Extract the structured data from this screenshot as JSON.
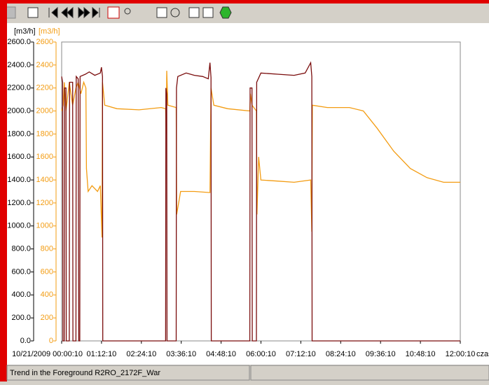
{
  "chart_data": {
    "type": "line",
    "ylabel": "[m3/h]",
    "y2label": "[m3/h]",
    "xlabel": "czas",
    "xlim": [
      "00:00:10",
      "12:00:10"
    ],
    "xticks": [
      {
        "value": "00:00:10",
        "label": "10/21/2009 00:00:10"
      },
      "01:12:10",
      "02:24:10",
      "03:36:10",
      "04:48:10",
      "06:00:10",
      "07:12:10",
      "08:24:10",
      "09:36:10",
      "10:48:10",
      "12:00:10"
    ],
    "ylim": [
      0,
      2600
    ],
    "yticks": [
      {
        "value": 0,
        "label": "0.0"
      },
      {
        "value": 200,
        "label": "200.0"
      },
      {
        "value": 400,
        "label": "400.0"
      },
      {
        "value": 600,
        "label": "600.0"
      },
      {
        "value": 800,
        "label": "800.0"
      },
      {
        "value": 1000,
        "label": "1000.0"
      },
      {
        "value": 1200,
        "label": "1200.0"
      },
      {
        "value": 1400,
        "label": "1400.0"
      },
      {
        "value": 1600,
        "label": "1600.0"
      },
      {
        "value": 1800,
        "label": "1800.0"
      },
      {
        "value": 2000,
        "label": "2000.0"
      },
      {
        "value": 2200,
        "label": "2200.0"
      },
      {
        "value": 2400,
        "label": "2400.0"
      },
      {
        "value": 2600,
        "label": "2600.0"
      }
    ],
    "y2lim": [
      0,
      2600
    ],
    "y2ticks": [
      0,
      200,
      400,
      600,
      800,
      1000,
      1200,
      1400,
      1600,
      1800,
      2000,
      2200,
      2400,
      2600
    ],
    "series": [
      {
        "color": "#7a0c0c",
        "x": [
          "00:00:10",
          "00:02:00",
          "00:02:30",
          "00:05:00",
          "00:05:30",
          "00:08:00",
          "00:08:30",
          "00:14:00",
          "00:14:30",
          "00:20:00",
          "00:20:30",
          "00:26:00",
          "00:26:30",
          "00:30:00",
          "00:31:00",
          "00:33:00",
          "00:33:30",
          "00:43:00",
          "00:50:00",
          "01:00:00",
          "01:10:00",
          "01:12:00",
          "01:14:00",
          "01:14:30",
          "03:08:00",
          "03:08:30",
          "03:10:00",
          "03:10:30",
          "03:27:00",
          "03:27:30",
          "03:30:00",
          "03:45:00",
          "04:00:00",
          "04:15:00",
          "04:25:00",
          "04:28:00",
          "04:30:00",
          "04:30:30",
          "05:40:00",
          "05:40:30",
          "05:44:00",
          "05:44:30",
          "05:52:00",
          "05:52:30",
          "06:00:00",
          "06:30:00",
          "07:00:00",
          "07:20:00",
          "07:30:00",
          "07:32:00",
          "07:32:30",
          "12:00:10"
        ],
        "values": [
          2300,
          2250,
          0,
          0,
          2200,
          2200,
          0,
          0,
          2250,
          2250,
          0,
          0,
          2300,
          2280,
          0,
          0,
          2300,
          2320,
          2340,
          2310,
          2330,
          2380,
          2300,
          0,
          0,
          2200,
          2150,
          0,
          0,
          2200,
          2300,
          2330,
          2310,
          2300,
          2280,
          2420,
          2290,
          0,
          0,
          2200,
          2200,
          0,
          0,
          2250,
          2330,
          2320,
          2310,
          2330,
          2420,
          2300,
          0,
          0
        ]
      },
      {
        "color": "#f39c12",
        "axis": "y2",
        "x": [
          "00:00:10",
          "00:03:00",
          "00:05:00",
          "00:08:00",
          "00:14:00",
          "00:20:00",
          "00:26:00",
          "00:30:00",
          "00:35:00",
          "00:40:00",
          "00:44:00",
          "00:45:00",
          "00:48:00",
          "00:55:00",
          "01:05:00",
          "01:10:00",
          "01:13:00",
          "01:14:00",
          "01:18:00",
          "01:40:00",
          "02:20:00",
          "03:00:00",
          "03:08:00",
          "03:09:00",
          "03:10:00",
          "03:12:00",
          "03:27:00",
          "03:28:00",
          "03:35:00",
          "04:00:00",
          "04:28:00",
          "04:30:00",
          "04:35:00",
          "05:00:00",
          "05:40:00",
          "05:41:00",
          "05:44:00",
          "05:52:00",
          "05:53:00",
          "05:56:00",
          "06:00:00",
          "06:30:00",
          "07:00:00",
          "07:30:00",
          "07:32:00",
          "07:33:00",
          "08:00:00",
          "08:40:00",
          "09:05:00",
          "09:30:00",
          "10:00:00",
          "10:30:00",
          "11:00:00",
          "11:30:00",
          "12:00:10"
        ],
        "values": [
          2000,
          2050,
          2250,
          2000,
          2250,
          2050,
          2200,
          2250,
          2150,
          2250,
          2200,
          1500,
          1300,
          1350,
          1300,
          1350,
          900,
          2250,
          2050,
          2020,
          2010,
          2030,
          2020,
          1800,
          2350,
          2050,
          2030,
          1100,
          1300,
          1300,
          1290,
          2200,
          2050,
          2020,
          2000,
          2150,
          2050,
          2000,
          1100,
          1600,
          1400,
          1390,
          1380,
          1400,
          950,
          2050,
          2030,
          2030,
          2000,
          1850,
          1650,
          1500,
          1420,
          1380,
          1380
        ]
      }
    ]
  },
  "status_bar": "Trend in the Foreground R2RO_2172F_War"
}
